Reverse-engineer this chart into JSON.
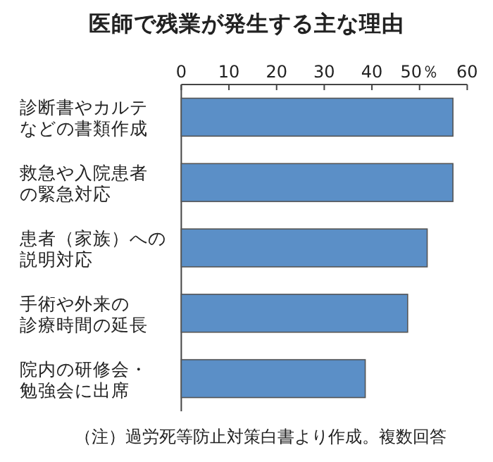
{
  "chart_data": {
    "type": "bar",
    "orientation": "horizontal",
    "title": "医師で残業が発生する主な理由",
    "categories": [
      "診断書やカルテなどの書類作成",
      "救急や入院患者の緊急対応",
      "患者（家族）への説明対応",
      "手術や外来の診療時間の延長",
      "院内の研修会・勉強会に出席"
    ],
    "values": [
      57,
      57,
      51.6,
      47.5,
      38.6
    ],
    "color": "#5b8fc7",
    "xlim": [
      0,
      60
    ],
    "xticks": [
      0,
      10,
      20,
      30,
      40,
      {
        "value": 50,
        "label": "50％"
      },
      60
    ],
    "annotations": [
      "（注）過労死等防止対策白書より作成。複数回答"
    ]
  }
}
